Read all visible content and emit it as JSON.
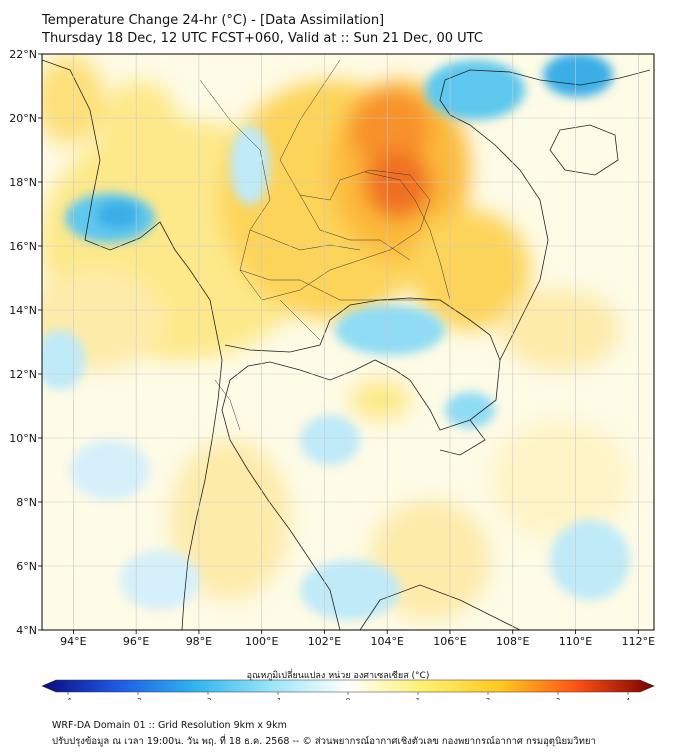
{
  "title": {
    "line1": "Temperature Change 24-hr (°C) - [Data Assimilation]",
    "line2": "Thursday 18 Dec, 12 UTC FCST+060, Valid at :: Sun 21 Dec, 00 UTC"
  },
  "map": {
    "lon_range": [
      93,
      112.5
    ],
    "lat_range": [
      4,
      22
    ],
    "x_ticks": [
      {
        "value": 94,
        "label": "94°E"
      },
      {
        "value": 96,
        "label": "96°E"
      },
      {
        "value": 98,
        "label": "98°E"
      },
      {
        "value": 100,
        "label": "100°E"
      },
      {
        "value": 102,
        "label": "102°E"
      },
      {
        "value": 104,
        "label": "104°E"
      },
      {
        "value": 106,
        "label": "106°E"
      },
      {
        "value": 108,
        "label": "108°E"
      },
      {
        "value": 110,
        "label": "110°E"
      },
      {
        "value": 112,
        "label": "112°E"
      }
    ],
    "y_ticks": [
      {
        "value": 22,
        "label": "22°N"
      },
      {
        "value": 20,
        "label": "20°N"
      },
      {
        "value": 18,
        "label": "18°N"
      },
      {
        "value": 16,
        "label": "16°N"
      },
      {
        "value": 14,
        "label": "14°N"
      },
      {
        "value": 12,
        "label": "12°N"
      },
      {
        "value": 10,
        "label": "10°N"
      },
      {
        "value": 8,
        "label": "8°N"
      },
      {
        "value": 6,
        "label": "6°N"
      },
      {
        "value": 4,
        "label": "4°N"
      }
    ],
    "grid": true
  },
  "colorbar": {
    "label": "อุณหภูมิเปลี่ยนแปลง หน่วย องศาเซลเซียส (°C)",
    "range": [
      -4,
      4
    ],
    "ticks": [
      {
        "value": -4,
        "label": "-4"
      },
      {
        "value": -3,
        "label": "-3"
      },
      {
        "value": -2,
        "label": "-2"
      },
      {
        "value": -1,
        "label": "-1"
      },
      {
        "value": 0,
        "label": "0"
      },
      {
        "value": 1,
        "label": "1"
      },
      {
        "value": 2,
        "label": "2"
      },
      {
        "value": 3,
        "label": "3"
      },
      {
        "value": 4,
        "label": "4"
      }
    ],
    "colors": [
      "#0a0a80",
      "#1e5ae6",
      "#30b4f0",
      "#9ae6f8",
      "#ffffff",
      "#fff06e",
      "#ffc81e",
      "#ff5014",
      "#780000"
    ]
  },
  "footer": {
    "line1": "WRF-DA Domain 01 :: Grid Resolution 9km x 9km",
    "line2": "ปรับปรุงข้อมูล ณ เวลา 19:00น. วัน พฤ. ที่ 18 ธ.ค. 2568 -- © ส่วนพยากรณ์อากาศเชิงตัวเลข กองพยากรณ์อากาศ กรมอุตุนิยมวิทยา"
  }
}
